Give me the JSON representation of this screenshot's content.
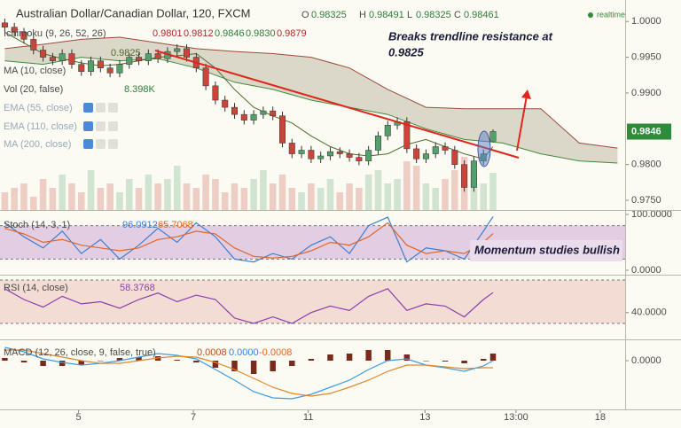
{
  "chart_data": [
    {
      "type": "candlestick",
      "title": "Australian Dollar/Canadian Dollar, 120, FXCM",
      "status": "realtime",
      "ohlc": {
        "labels": [
          "O",
          "H",
          "L",
          "C"
        ],
        "values": [
          0.98325,
          0.98491,
          0.98325,
          0.98461
        ]
      },
      "studies": [
        {
          "name": "Ichimoku (9, 26, 52, 26)",
          "values": [
            0.9801,
            0.9812,
            0.9846,
            0.983,
            0.9879
          ],
          "value_labels": [
            "0.9801",
            "0.9812",
            "0.9846",
            "0.9830",
            "0.9879"
          ]
        },
        {
          "name": "MA (10, close)",
          "values": [
            0.9825
          ]
        },
        {
          "name": "Vol (20, false)",
          "values": [
            8.398
          ],
          "value_labels": [
            "8.398K"
          ]
        },
        {
          "name": "EMA (55, close)"
        },
        {
          "name": "EMA (110, close)"
        },
        {
          "name": "MA (200, close)"
        }
      ],
      "annotation": [
        "Breaks trendline resistance at",
        "0.9825"
      ],
      "last_price": {
        "value": 0.9846,
        "label": "0.9846"
      },
      "xlim": [
        -0.5,
        64.8
      ],
      "xticks": [
        {
          "value": 7.7,
          "label": "5"
        },
        {
          "value": 19.7,
          "label": "7"
        },
        {
          "value": 31.7,
          "label": "11"
        },
        {
          "value": 43.9,
          "label": "13"
        },
        {
          "value": 53.4,
          "label": "13:00"
        },
        {
          "value": 62.2,
          "label": "18"
        }
      ],
      "ylim": [
        0.97364,
        1.003
      ],
      "yticks": [
        {
          "value": 1.0,
          "label": "1.0000"
        },
        {
          "value": 0.995,
          "label": "0.9950"
        },
        {
          "value": 0.99,
          "label": "0.9900"
        },
        {
          "value": 0.98,
          "label": "0.9800"
        },
        {
          "value": 0.975,
          "label": "0.9750"
        }
      ],
      "up_color": "#53a06b",
      "down_color": "#c9453a",
      "open": [
        0.9998,
        0.9992,
        0.9985,
        0.9975,
        0.996,
        0.995,
        0.9945,
        0.9955,
        0.994,
        0.993,
        0.9945,
        0.9935,
        0.9928,
        0.994,
        0.995,
        0.9945,
        0.9955,
        0.9948,
        0.9958,
        0.9962,
        0.995,
        0.9935,
        0.991,
        0.989,
        0.988,
        0.987,
        0.9862,
        0.987,
        0.9875,
        0.9868,
        0.983,
        0.9815,
        0.982,
        0.9808,
        0.9812,
        0.9818,
        0.9815,
        0.981,
        0.9805,
        0.982,
        0.984,
        0.9855,
        0.986,
        0.9822,
        0.9808,
        0.9815,
        0.9825,
        0.982,
        0.98,
        0.9768,
        0.9805,
        0.98325
      ],
      "high": [
        1.0004,
        0.9998,
        0.9991,
        0.9981,
        0.9966,
        0.9956,
        0.9961,
        0.9961,
        0.9946,
        0.9951,
        0.9951,
        0.9941,
        0.9946,
        0.9956,
        0.9956,
        0.9961,
        0.9961,
        0.9964,
        0.9968,
        0.9968,
        0.9956,
        0.9941,
        0.9916,
        0.9896,
        0.9886,
        0.9876,
        0.9876,
        0.9881,
        0.9881,
        0.9874,
        0.9836,
        0.9826,
        0.9826,
        0.9818,
        0.9824,
        0.9824,
        0.9821,
        0.9816,
        0.9826,
        0.9846,
        0.9861,
        0.9866,
        0.9866,
        0.9828,
        0.9821,
        0.9831,
        0.9831,
        0.9826,
        0.9806,
        0.9811,
        0.9821,
        0.98491
      ],
      "low": [
        0.9986,
        0.9979,
        0.9969,
        0.9954,
        0.9944,
        0.9939,
        0.9939,
        0.9934,
        0.9924,
        0.9924,
        0.9929,
        0.9922,
        0.9922,
        0.9934,
        0.9939,
        0.9939,
        0.9942,
        0.9942,
        0.9952,
        0.9944,
        0.9929,
        0.9904,
        0.9884,
        0.9874,
        0.9864,
        0.9856,
        0.9856,
        0.9864,
        0.9862,
        0.9824,
        0.9809,
        0.9809,
        0.9802,
        0.9802,
        0.9806,
        0.9809,
        0.9804,
        0.9799,
        0.9799,
        0.9814,
        0.9834,
        0.9849,
        0.9816,
        0.9802,
        0.9802,
        0.9809,
        0.9814,
        0.9794,
        0.9762,
        0.9762,
        0.9799,
        0.98325
      ],
      "close": [
        0.9992,
        0.9985,
        0.9975,
        0.996,
        0.995,
        0.9945,
        0.9955,
        0.994,
        0.993,
        0.9945,
        0.9935,
        0.9928,
        0.994,
        0.995,
        0.9945,
        0.9955,
        0.9948,
        0.9958,
        0.9962,
        0.995,
        0.9935,
        0.991,
        0.989,
        0.988,
        0.987,
        0.9862,
        0.987,
        0.9875,
        0.9868,
        0.983,
        0.9815,
        0.982,
        0.9808,
        0.9812,
        0.9818,
        0.9815,
        0.981,
        0.9805,
        0.982,
        0.984,
        0.9855,
        0.986,
        0.9822,
        0.9808,
        0.9815,
        0.9825,
        0.982,
        0.98,
        0.9768,
        0.9805,
        0.9815,
        0.98461
      ],
      "volume": [
        4,
        5,
        6,
        3,
        7,
        5,
        8,
        6,
        4,
        9,
        5,
        6,
        4,
        7,
        5,
        8,
        6,
        7,
        10,
        6,
        5,
        8,
        7,
        4,
        6,
        5,
        7,
        9,
        6,
        8,
        5,
        4,
        6,
        5,
        7,
        4,
        6,
        5,
        8,
        9,
        6,
        7,
        11,
        10,
        6,
        5,
        7,
        9,
        12,
        8,
        6,
        8.398
      ],
      "cloud": {
        "x": [
          0,
          4,
          8,
          12,
          16,
          20,
          24,
          28,
          32,
          36,
          40,
          44,
          48,
          52,
          56,
          60,
          64
        ],
        "span_a": [
          0.9962,
          0.9968,
          0.9975,
          0.9978,
          0.997,
          0.9962,
          0.9958,
          0.9955,
          0.995,
          0.9935,
          0.9905,
          0.988,
          0.9878,
          0.9878,
          0.9878,
          0.983,
          0.9823
        ],
        "span_b": [
          0.9945,
          0.994,
          0.995,
          0.9945,
          0.9948,
          0.9935,
          0.9915,
          0.9905,
          0.989,
          0.988,
          0.987,
          0.985,
          0.9835,
          0.983,
          0.9815,
          0.9805,
          0.9802
        ],
        "color_a": "#9c4a3a",
        "color_b": "#3f8a3a",
        "fill": "#b3ae98"
      },
      "ma": {
        "color": "#4d6b2a",
        "x": [
          0,
          2,
          4,
          6,
          8,
          10,
          12,
          14,
          16,
          18,
          20,
          22,
          24,
          26,
          28,
          30,
          32,
          34,
          36,
          38,
          40,
          42,
          44,
          46,
          48,
          50,
          51
        ],
        "values": [
          0.9985,
          0.997,
          0.9955,
          0.9948,
          0.9942,
          0.9938,
          0.994,
          0.9945,
          0.995,
          0.9952,
          0.9955,
          0.9935,
          0.9905,
          0.988,
          0.9868,
          0.9858,
          0.984,
          0.9825,
          0.9815,
          0.9812,
          0.9815,
          0.9828,
          0.9835,
          0.9825,
          0.9815,
          0.9808,
          0.9825
        ]
      }
    },
    {
      "type": "line",
      "title": "Stoch (14, 3, 1)",
      "legend_values": [
        96.0912,
        65.7068
      ],
      "annotation": "Momentum studies bullish",
      "ylim": [
        -7.9,
        107.9
      ],
      "yticks": [
        {
          "value": 100,
          "label": "100.0000"
        },
        {
          "value": 0,
          "label": "0.0000"
        }
      ],
      "bands": [
        20,
        80
      ],
      "band_color": "#e3cde3",
      "x": [
        0,
        2,
        4,
        6,
        8,
        10,
        12,
        14,
        16,
        18,
        20,
        22,
        24,
        26,
        28,
        30,
        32,
        34,
        36,
        38,
        40,
        42,
        44,
        46,
        48,
        50,
        51
      ],
      "series": [
        {
          "color": "#3d7fd1",
          "values": [
            85,
            60,
            40,
            70,
            30,
            55,
            20,
            45,
            75,
            50,
            85,
            60,
            20,
            15,
            30,
            20,
            45,
            60,
            30,
            80,
            95,
            15,
            40,
            35,
            20,
            70,
            96
          ]
        },
        {
          "color": "#e0672b",
          "values": [
            75,
            65,
            50,
            55,
            45,
            40,
            35,
            40,
            55,
            60,
            70,
            65,
            40,
            25,
            22,
            25,
            35,
            50,
            45,
            60,
            85,
            45,
            30,
            35,
            30,
            50,
            65.7
          ]
        }
      ]
    },
    {
      "type": "line",
      "title": "RSI (14, close)",
      "legend_values": [
        58.3768
      ],
      "ylim": [
        15.3,
        74.9
      ],
      "yticks": [
        {
          "value": 40,
          "label": "40.0000"
        }
      ],
      "bands": [
        30,
        70
      ],
      "band_color": "#f3dcd3",
      "x": [
        0,
        2,
        4,
        6,
        8,
        10,
        12,
        14,
        16,
        18,
        20,
        22,
        24,
        26,
        28,
        30,
        32,
        34,
        36,
        38,
        40,
        42,
        44,
        46,
        48,
        50,
        51
      ],
      "series": [
        {
          "color": "#8a3fb0",
          "values": [
            62,
            52,
            45,
            55,
            48,
            50,
            44,
            52,
            58,
            50,
            56,
            52,
            35,
            30,
            36,
            30,
            40,
            46,
            42,
            55,
            62,
            42,
            48,
            46,
            36,
            52,
            58.4
          ]
        }
      ]
    },
    {
      "type": "macd",
      "title": "MACD (12, 26, close, 9, false, true)",
      "legend_values": [
        0.0008,
        0,
        -0.0008
      ],
      "legend_value_labels": [
        "0.0008",
        "0.0000",
        "-0.0008"
      ],
      "legend_colors": [
        "#b0521e",
        "#3d7fd1",
        "#e0672b"
      ],
      "ylim": [
        -0.0055,
        0.0024
      ],
      "yticks": [
        {
          "value": 0,
          "label": "0.0000"
        }
      ],
      "x": [
        0,
        2,
        4,
        6,
        8,
        10,
        12,
        14,
        16,
        18,
        20,
        22,
        24,
        26,
        28,
        30,
        32,
        34,
        36,
        38,
        40,
        42,
        44,
        46,
        48,
        50,
        51
      ],
      "histogram": {
        "color": "#7a2a1a",
        "values": [
          0.0003,
          -0.0002,
          -0.0006,
          -0.0006,
          -0.0005,
          0,
          0.0003,
          0.0004,
          0.0005,
          0.0001,
          -0.0002,
          -0.0008,
          -0.0012,
          -0.0015,
          -0.0012,
          -0.0006,
          0.0002,
          0.0007,
          0.0008,
          0.0012,
          0.0012,
          0.0007,
          0,
          -0.0001,
          -0.0003,
          0.0002,
          0.0008
        ]
      },
      "series": [
        {
          "color": "#3d9de0",
          "values": [
            0.0015,
            0.001,
            0.0002,
            -0.0002,
            -0.0005,
            -0.0003,
            0,
            0.0004,
            0.0008,
            0.0006,
            0.0002,
            -0.001,
            -0.0022,
            -0.0035,
            -0.0042,
            -0.0043,
            -0.0038,
            -0.003,
            -0.0022,
            -0.001,
            0,
            0.0002,
            -0.0005,
            -0.0008,
            -0.0012,
            -0.0006,
            0
          ]
        },
        {
          "color": "#e0872b",
          "values": [
            0.0012,
            0.0012,
            0.0008,
            0.0004,
            0,
            -0.0003,
            -0.0003,
            0,
            0.0003,
            0.0005,
            0.0004,
            -0.0002,
            -0.001,
            -0.002,
            -0.003,
            -0.0037,
            -0.004,
            -0.0037,
            -0.003,
            -0.0022,
            -0.0012,
            -0.0005,
            -0.0005,
            -0.0007,
            -0.0009,
            -0.0008,
            -0.0008
          ]
        }
      ]
    }
  ]
}
